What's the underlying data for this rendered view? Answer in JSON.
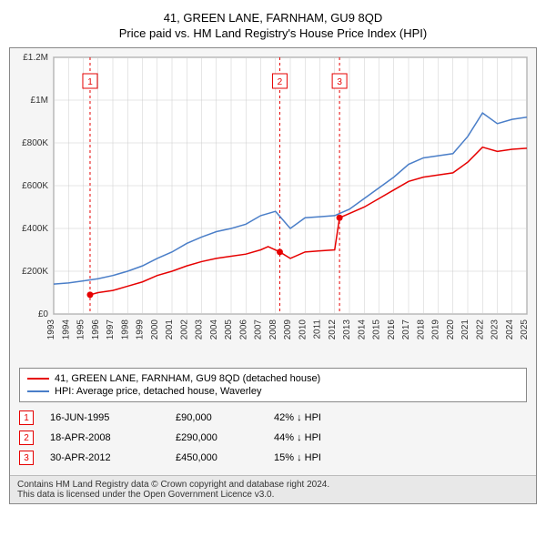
{
  "title_line1": "41, GREEN LANE, FARNHAM, GU9 8QD",
  "title_line2": "Price paid vs. HM Land Registry's House Price Index (HPI)",
  "chart": {
    "type": "line",
    "background_color": "#f5f5f5",
    "plot_bg": "#ffffff",
    "grid_color": "#cccccc",
    "axis_color": "#666666",
    "label_fontsize": 11,
    "tick_fontsize": 10,
    "x": {
      "min": 1993,
      "max": 2025,
      "ticks": [
        1993,
        1994,
        1995,
        1996,
        1997,
        1998,
        1999,
        2000,
        2001,
        2002,
        2003,
        2004,
        2005,
        2006,
        2007,
        2008,
        2009,
        2010,
        2011,
        2012,
        2013,
        2014,
        2015,
        2016,
        2017,
        2018,
        2019,
        2020,
        2021,
        2022,
        2023,
        2024,
        2025
      ],
      "labels_rotated": true
    },
    "y": {
      "min": 0,
      "max": 1200000,
      "ticks": [
        0,
        200000,
        400000,
        600000,
        800000,
        1000000,
        1200000
      ],
      "tick_labels": [
        "£0",
        "£200K",
        "£400K",
        "£600K",
        "£800K",
        "£1M",
        "£1.2M"
      ]
    },
    "series": [
      {
        "name": "41, GREEN LANE, FARNHAM, GU9 8QD (detached house)",
        "color": "#e60000",
        "line_width": 1.5,
        "points": [
          [
            1995.46,
            90000
          ],
          [
            1996,
            100000
          ],
          [
            1997,
            110000
          ],
          [
            1998,
            130000
          ],
          [
            1999,
            150000
          ],
          [
            2000,
            180000
          ],
          [
            2001,
            200000
          ],
          [
            2002,
            225000
          ],
          [
            2003,
            245000
          ],
          [
            2004,
            260000
          ],
          [
            2005,
            270000
          ],
          [
            2006,
            280000
          ],
          [
            2007,
            300000
          ],
          [
            2007.5,
            315000
          ],
          [
            2008.29,
            290000
          ],
          [
            2009,
            260000
          ],
          [
            2010,
            290000
          ],
          [
            2011,
            295000
          ],
          [
            2012,
            300000
          ],
          [
            2012.33,
            450000
          ],
          [
            2013,
            470000
          ],
          [
            2014,
            500000
          ],
          [
            2015,
            540000
          ],
          [
            2016,
            580000
          ],
          [
            2017,
            620000
          ],
          [
            2018,
            640000
          ],
          [
            2019,
            650000
          ],
          [
            2020,
            660000
          ],
          [
            2021,
            710000
          ],
          [
            2022,
            780000
          ],
          [
            2023,
            760000
          ],
          [
            2024,
            770000
          ],
          [
            2025,
            775000
          ]
        ]
      },
      {
        "name": "HPI: Average price, detached house, Waverley",
        "color": "#4a7ec8",
        "line_width": 1.5,
        "points": [
          [
            1993,
            140000
          ],
          [
            1994,
            145000
          ],
          [
            1995,
            155000
          ],
          [
            1996,
            165000
          ],
          [
            1997,
            180000
          ],
          [
            1998,
            200000
          ],
          [
            1999,
            225000
          ],
          [
            2000,
            260000
          ],
          [
            2001,
            290000
          ],
          [
            2002,
            330000
          ],
          [
            2003,
            360000
          ],
          [
            2004,
            385000
          ],
          [
            2005,
            400000
          ],
          [
            2006,
            420000
          ],
          [
            2007,
            460000
          ],
          [
            2008,
            480000
          ],
          [
            2009,
            400000
          ],
          [
            2010,
            450000
          ],
          [
            2011,
            455000
          ],
          [
            2012,
            460000
          ],
          [
            2013,
            490000
          ],
          [
            2014,
            540000
          ],
          [
            2015,
            590000
          ],
          [
            2016,
            640000
          ],
          [
            2017,
            700000
          ],
          [
            2018,
            730000
          ],
          [
            2019,
            740000
          ],
          [
            2020,
            750000
          ],
          [
            2021,
            830000
          ],
          [
            2022,
            940000
          ],
          [
            2023,
            890000
          ],
          [
            2024,
            910000
          ],
          [
            2025,
            920000
          ]
        ]
      }
    ],
    "sale_markers": [
      {
        "n": "1",
        "x": 1995.46,
        "y": 90000
      },
      {
        "n": "2",
        "x": 2008.29,
        "y": 290000
      },
      {
        "n": "3",
        "x": 2012.33,
        "y": 450000
      }
    ],
    "marker_color": "#e60000",
    "marker_dash": "3,3"
  },
  "legend": {
    "items": [
      {
        "color": "#e60000",
        "label": "41, GREEN LANE, FARNHAM, GU9 8QD (detached house)"
      },
      {
        "color": "#4a7ec8",
        "label": "HPI: Average price, detached house, Waverley"
      }
    ]
  },
  "sales": [
    {
      "n": "1",
      "date": "16-JUN-1995",
      "price": "£90,000",
      "diff": "42% ↓ HPI"
    },
    {
      "n": "2",
      "date": "18-APR-2008",
      "price": "£290,000",
      "diff": "44% ↓ HPI"
    },
    {
      "n": "3",
      "date": "30-APR-2012",
      "price": "£450,000",
      "diff": "15% ↓ HPI"
    }
  ],
  "footer_line1": "Contains HM Land Registry data © Crown copyright and database right 2024.",
  "footer_line2": "This data is licensed under the Open Government Licence v3.0."
}
